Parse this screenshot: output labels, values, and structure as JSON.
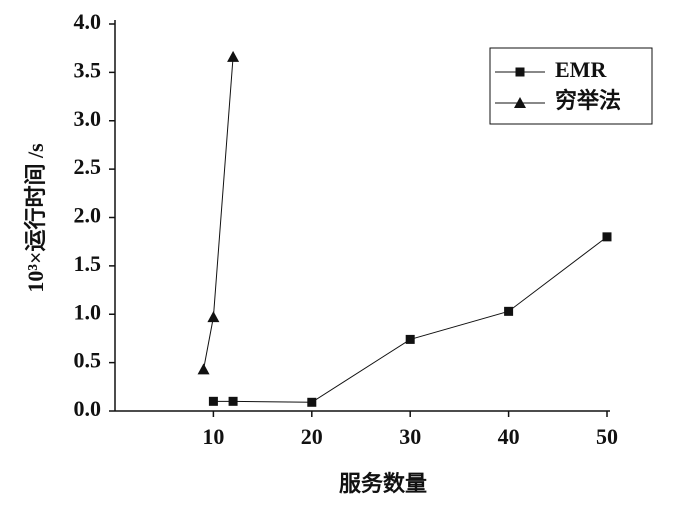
{
  "chart_data": {
    "type": "line",
    "x_label": "服务数量",
    "y_label": "10³×运行时间 /s",
    "xlim": [
      0,
      50
    ],
    "xticks": [
      10,
      20,
      30,
      40,
      50
    ],
    "ylim": [
      0,
      4
    ],
    "yticks": [
      {
        "value": 0,
        "label": "0.0"
      },
      0.5,
      {
        "value": 1,
        "label": "1.0"
      },
      1.5,
      {
        "value": 2,
        "label": "2.0"
      },
      2.5,
      {
        "value": 3,
        "label": "3.0"
      },
      3.5,
      {
        "value": 4,
        "label": "4.0"
      }
    ],
    "legend": "upper right",
    "series": [
      {
        "name": "EMR",
        "color": "#111111",
        "marker": "square",
        "x": [
          10,
          12,
          20,
          30,
          40,
          50
        ],
        "values": [
          0.1,
          0.1,
          0.09,
          0.74,
          1.03,
          1.8
        ]
      },
      {
        "name": "穷举法",
        "color": "#111111",
        "marker": "triangle",
        "x": [
          9,
          10,
          12
        ],
        "values": [
          0.43,
          0.97,
          3.66
        ]
      }
    ]
  }
}
